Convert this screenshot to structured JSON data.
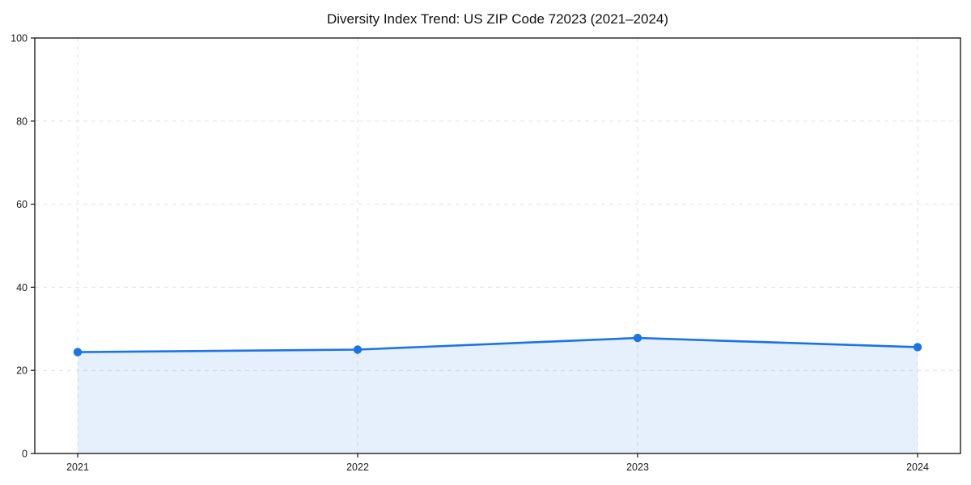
{
  "chart_data": {
    "type": "line",
    "title": "Diversity Index Trend: US ZIP Code 72023 (2021–2024)",
    "x": [
      2021,
      2022,
      2023,
      2024
    ],
    "series": [
      {
        "name": "Diversity Index",
        "values": [
          24.4,
          25.0,
          27.8,
          25.6
        ]
      }
    ],
    "xlabel": "",
    "ylabel": "",
    "ylim": [
      0,
      100
    ],
    "yticks": [
      0,
      20,
      40,
      60,
      80,
      100
    ],
    "xticks": [
      "2021",
      "2022",
      "2023",
      "2024"
    ],
    "grid": true,
    "grid_style": "dashed",
    "legend_position": "none",
    "marker": "circle",
    "area_fill": true,
    "colors": {
      "line": "#1a73e8",
      "marker": "#1a73e8",
      "area": "#1a73e8",
      "area_opacity": 0.11,
      "grid": "#e2e2e2",
      "spine": "#1f1f1f",
      "tick": "#1f1f1f",
      "text": "#1a1a1a",
      "background": "#ffffff"
    }
  }
}
